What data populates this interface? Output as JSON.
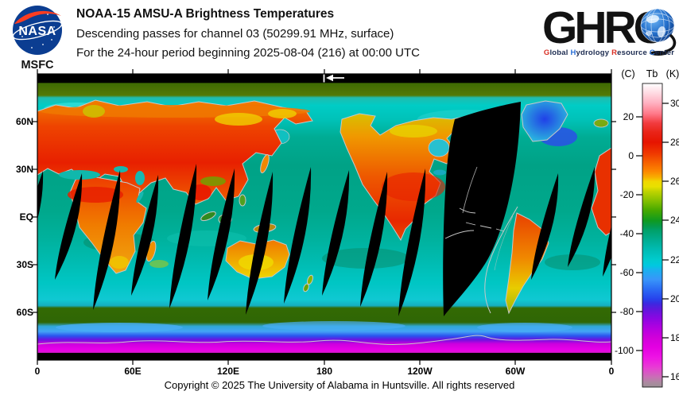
{
  "header": {
    "nasa_logo": {
      "text": "NASA",
      "caption": "MSFC"
    },
    "title": "NOAA-15 AMSU-A Brightness Temperatures",
    "subtitle_line1": "Descending passes for channel 03 (50299.91 MHz, surface)",
    "subtitle_line2": "For the 24-hour period beginning 2025-08-04 (216) at 00:00 UTC",
    "ghrc_logo": {
      "acronym": "GHRC",
      "tagline_segments": [
        {
          "t": "G",
          "c": "r"
        },
        {
          "t": "lobal ",
          "c": "d"
        },
        {
          "t": "H",
          "c": "b"
        },
        {
          "t": "ydrology ",
          "c": "d"
        },
        {
          "t": "R",
          "c": "r"
        },
        {
          "t": "esource ",
          "c": "d"
        },
        {
          "t": "C",
          "c": "b"
        },
        {
          "t": "enter",
          "c": "d"
        }
      ]
    }
  },
  "map": {
    "lat_ticks": [
      "60N",
      "30N",
      "EQ",
      "30S",
      "60S"
    ],
    "lon_ticks": [
      "0",
      "60E",
      "120E",
      "180",
      "120W",
      "60W",
      "0"
    ],
    "pass_direction_indicator": "left-arrow"
  },
  "colorbar": {
    "unit_left": "(C)",
    "quantity": "Tb",
    "unit_right": "(K)",
    "c_ticks": [
      "20",
      "0",
      "-20",
      "-40",
      "-60",
      "-80",
      "-100"
    ],
    "k_ticks": [
      "300",
      "280",
      "260",
      "240",
      "220",
      "200",
      "180",
      "160"
    ]
  },
  "footer": {
    "copyright": "Copyright © 2025 The University of Alabama in Huntsville.  All rights reserved"
  },
  "colors": {
    "nasa_blue": "#0b3d91",
    "nasa_red": "#fc3d21",
    "ghrc_red": "#d93025",
    "ghrc_blue": "#2a6fd6",
    "ocean_teal": "#00a286",
    "land_hot_red": "#e82800",
    "antarctic_magenta": "#e800e8",
    "missing_swath": "#000000",
    "coastline_gray": "#c8c8c8"
  },
  "chart_data": {
    "type": "heatmap",
    "title": "NOAA-15 AMSU-A Brightness Temperatures",
    "projection": "equirectangular world map, longitude 0 to 360E left-to-right",
    "x_axis": {
      "labels": [
        "0",
        "60E",
        "120E",
        "180",
        "120W",
        "60W",
        "0"
      ]
    },
    "y_axis": {
      "labels": [
        "60N",
        "30N",
        "EQ",
        "30S",
        "60S"
      ]
    },
    "colorbar": {
      "quantity": "Tb",
      "kelvin_ticks": [
        300,
        280,
        260,
        240,
        220,
        200,
        180,
        160
      ],
      "celsius_ticks": [
        20,
        0,
        -20,
        -40,
        -60,
        -80,
        -100
      ],
      "range_k": [
        155,
        310
      ],
      "scale_colors_top_to_bottom": [
        "white",
        "pink",
        "red",
        "orange",
        "yellow",
        "green",
        "teal",
        "cyan",
        "blue",
        "purple",
        "magenta",
        "gray"
      ]
    },
    "features": "black lens-shaped gaps between descending orbit swaths; warm (red/orange) continents; cool (cyan/teal) oceans; magenta Antarctica; dark polar bands"
  }
}
